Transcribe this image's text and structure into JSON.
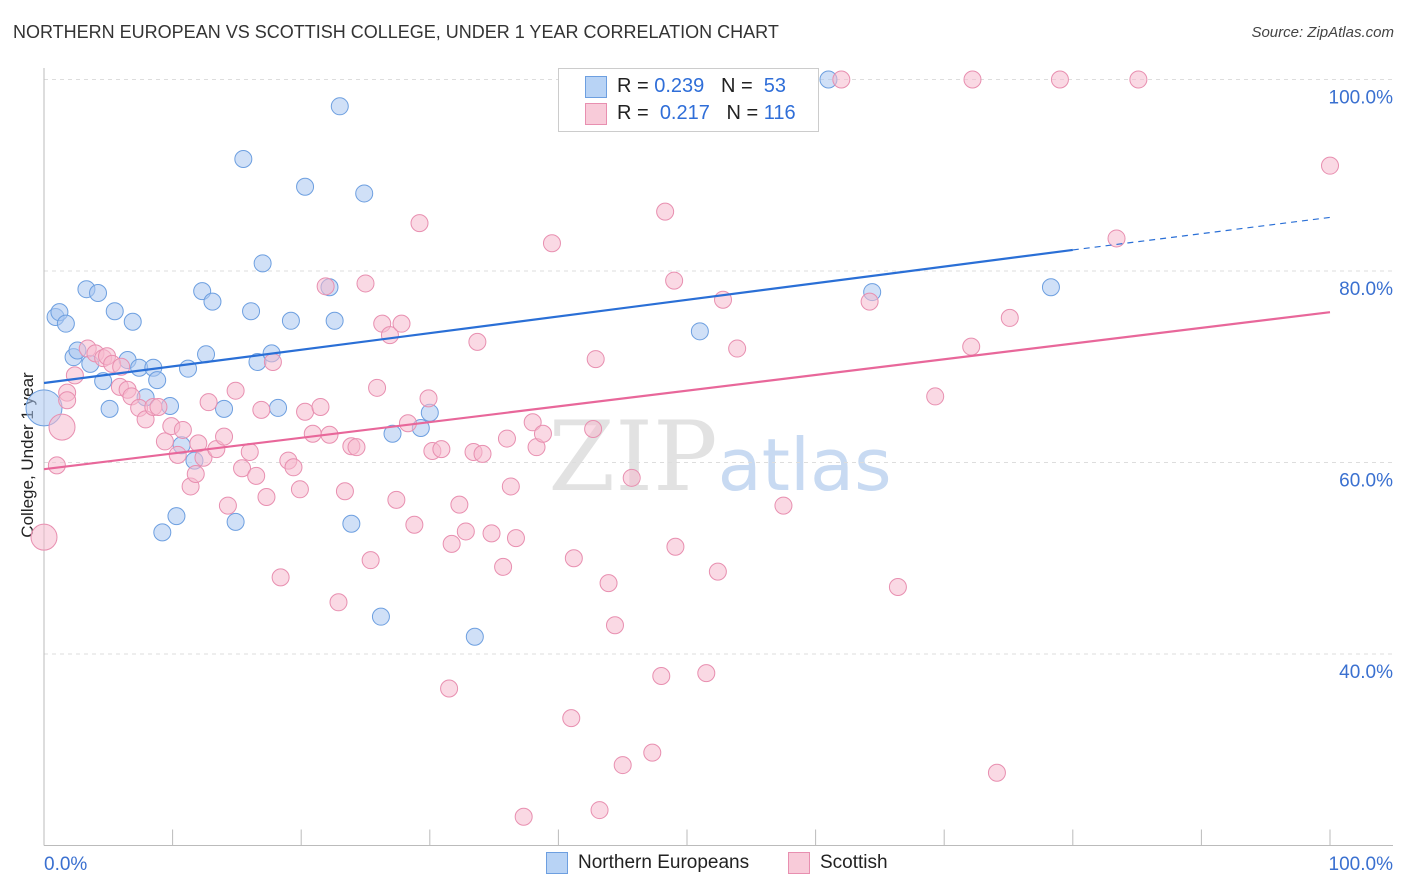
{
  "title": "NORTHERN EUROPEAN VS SCOTTISH COLLEGE, UNDER 1 YEAR CORRELATION CHART",
  "source": "Source: ZipAtlas.com",
  "watermark": "ZIPatlas",
  "chart_data": {
    "type": "scatter",
    "xlabel": "",
    "ylabel": "College, Under 1 year",
    "xlim": [
      0,
      100
    ],
    "ylim": [
      20,
      100
    ],
    "x_tick_labels": [
      "0.0%",
      "100.0%"
    ],
    "y_ticks": [
      40,
      60,
      80,
      100
    ],
    "y_tick_labels": [
      "40.0%",
      "60.0%",
      "80.0%",
      "100.0%"
    ],
    "grid": true,
    "legend": {
      "placement": "top-center",
      "entries": [
        {
          "r_label": "R =",
          "r": "0.239",
          "n_label": "N =",
          "n": "53"
        },
        {
          "r_label": "R =",
          "r": "0.217",
          "n_label": "N =",
          "n": "116"
        }
      ]
    },
    "series": [
      {
        "name": "Northern Europeans",
        "color": "#a9c7f0",
        "stroke": "#6d9fe0",
        "line_color": "#2a6fd6",
        "trend": {
          "x": [
            0,
            80,
            100
          ],
          "y": [
            68.3,
            82.2,
            85.6
          ],
          "dashed_after": 80
        },
        "points": [
          [
            0,
            65.7
          ],
          [
            0.9,
            75.2
          ],
          [
            1.2,
            75.7
          ],
          [
            1.7,
            74.5
          ],
          [
            2.3,
            71.0
          ],
          [
            2.6,
            71.7
          ],
          [
            3.3,
            78.1
          ],
          [
            3.6,
            70.3
          ],
          [
            4.2,
            77.7
          ],
          [
            4.6,
            68.5
          ],
          [
            5.1,
            65.6
          ],
          [
            5.5,
            75.8
          ],
          [
            6.5,
            70.7
          ],
          [
            6.9,
            74.7
          ],
          [
            7.4,
            69.9
          ],
          [
            7.9,
            66.8
          ],
          [
            8.5,
            69.9
          ],
          [
            8.8,
            68.6
          ],
          [
            9.2,
            52.7
          ],
          [
            9.8,
            65.9
          ],
          [
            10.3,
            54.4
          ],
          [
            10.7,
            61.8
          ],
          [
            11.2,
            69.8
          ],
          [
            11.7,
            60.2
          ],
          [
            12.3,
            77.9
          ],
          [
            12.6,
            71.3
          ],
          [
            13.1,
            76.8
          ],
          [
            14.0,
            65.6
          ],
          [
            14.9,
            53.8
          ],
          [
            15.5,
            91.7
          ],
          [
            16.1,
            75.8
          ],
          [
            16.6,
            70.5
          ],
          [
            17.0,
            80.8
          ],
          [
            17.7,
            71.4
          ],
          [
            18.2,
            65.7
          ],
          [
            19.2,
            74.8
          ],
          [
            20.3,
            88.8
          ],
          [
            22.2,
            78.3
          ],
          [
            22.6,
            74.8
          ],
          [
            23.0,
            97.2
          ],
          [
            23.9,
            53.6
          ],
          [
            24.9,
            88.1
          ],
          [
            26.2,
            43.9
          ],
          [
            27.1,
            63.0
          ],
          [
            29.3,
            63.6
          ],
          [
            30.0,
            65.2
          ],
          [
            33.5,
            41.8
          ],
          [
            41.0,
            100
          ],
          [
            51.0,
            73.7
          ],
          [
            61.0,
            100
          ],
          [
            64.4,
            77.8
          ],
          [
            78.3,
            78.3
          ]
        ],
        "big_points": [
          0
        ]
      },
      {
        "name": "Scottish",
        "color": "#f5b9cd",
        "stroke": "#e88fb0",
        "line_color": "#e8679a",
        "trend": {
          "x": [
            0,
            100
          ],
          "y": [
            59.3,
            75.7
          ]
        },
        "points": [
          [
            0,
            52.2
          ],
          [
            1.0,
            59.7
          ],
          [
            1.4,
            63.7
          ],
          [
            1.8,
            67.3
          ],
          [
            2.4,
            69.1
          ],
          [
            3.4,
            71.9
          ],
          [
            4.0,
            71.4
          ],
          [
            4.6,
            70.9
          ],
          [
            4.9,
            71.1
          ],
          [
            5.3,
            70.3
          ],
          [
            5.9,
            67.9
          ],
          [
            6.5,
            67.6
          ],
          [
            6.8,
            66.9
          ],
          [
            7.4,
            65.7
          ],
          [
            7.9,
            64.5
          ],
          [
            8.5,
            65.8
          ],
          [
            8.9,
            65.8
          ],
          [
            9.4,
            62.2
          ],
          [
            9.9,
            63.8
          ],
          [
            10.4,
            60.8
          ],
          [
            10.8,
            63.4
          ],
          [
            11.4,
            57.5
          ],
          [
            11.8,
            58.8
          ],
          [
            12.4,
            60.5
          ],
          [
            12.8,
            66.3
          ],
          [
            13.4,
            61.4
          ],
          [
            14.0,
            62.7
          ],
          [
            14.3,
            55.5
          ],
          [
            14.9,
            67.5
          ],
          [
            15.4,
            59.4
          ],
          [
            16.0,
            61.1
          ],
          [
            16.5,
            58.6
          ],
          [
            16.9,
            65.5
          ],
          [
            17.3,
            56.4
          ],
          [
            17.8,
            70.5
          ],
          [
            18.4,
            48.0
          ],
          [
            19.0,
            60.2
          ],
          [
            19.4,
            59.5
          ],
          [
            19.9,
            57.2
          ],
          [
            20.3,
            65.3
          ],
          [
            20.9,
            63.0
          ],
          [
            21.5,
            65.8
          ],
          [
            21.9,
            78.4
          ],
          [
            22.2,
            62.9
          ],
          [
            22.9,
            45.4
          ],
          [
            23.4,
            57.0
          ],
          [
            23.9,
            61.7
          ],
          [
            24.3,
            61.6
          ],
          [
            25.0,
            78.7
          ],
          [
            25.4,
            49.8
          ],
          [
            25.9,
            67.8
          ],
          [
            26.3,
            74.5
          ],
          [
            26.9,
            73.3
          ],
          [
            27.4,
            56.1
          ],
          [
            27.8,
            74.5
          ],
          [
            28.3,
            64.1
          ],
          [
            28.8,
            53.5
          ],
          [
            29.2,
            85.0
          ],
          [
            29.9,
            66.7
          ],
          [
            30.2,
            61.2
          ],
          [
            30.9,
            61.4
          ],
          [
            31.5,
            36.4
          ],
          [
            31.7,
            51.5
          ],
          [
            32.3,
            55.6
          ],
          [
            32.8,
            52.8
          ],
          [
            33.4,
            61.1
          ],
          [
            33.7,
            72.6
          ],
          [
            34.1,
            60.9
          ],
          [
            34.8,
            52.6
          ],
          [
            35.7,
            49.1
          ],
          [
            36.0,
            62.5
          ],
          [
            36.3,
            57.5
          ],
          [
            36.7,
            52.1
          ],
          [
            38.0,
            64.2
          ],
          [
            38.3,
            61.6
          ],
          [
            38.8,
            63.0
          ],
          [
            39.5,
            82.9
          ],
          [
            41.0,
            33.3
          ],
          [
            41.2,
            50.0
          ],
          [
            41.3,
            100
          ],
          [
            42.7,
            63.5
          ],
          [
            42.9,
            70.8
          ],
          [
            43.2,
            23.7
          ],
          [
            43.9,
            47.4
          ],
          [
            44.4,
            43.0
          ],
          [
            45.0,
            28.4
          ],
          [
            45.7,
            58.4
          ],
          [
            47.3,
            29.7
          ],
          [
            48.0,
            37.7
          ],
          [
            48.3,
            86.2
          ],
          [
            49.0,
            79.0
          ],
          [
            49.1,
            51.2
          ],
          [
            51.5,
            38.0
          ],
          [
            52.0,
            100
          ],
          [
            52.4,
            48.6
          ],
          [
            52.8,
            77.0
          ],
          [
            53.9,
            71.9
          ],
          [
            57.5,
            55.5
          ],
          [
            59.1,
            100
          ],
          [
            62.0,
            100
          ],
          [
            64.2,
            76.8
          ],
          [
            66.4,
            47.0
          ],
          [
            69.3,
            66.9
          ],
          [
            72.1,
            72.1
          ],
          [
            72.2,
            100
          ],
          [
            74.1,
            27.6
          ],
          [
            75.1,
            75.1
          ],
          [
            79.0,
            100
          ],
          [
            83.4,
            83.4
          ],
          [
            85.1,
            100
          ],
          [
            100,
            91.0
          ],
          [
            37.3,
            23.0
          ],
          [
            1.8,
            66.5
          ],
          [
            6.0,
            70.0
          ],
          [
            12.0,
            62.0
          ]
        ],
        "big_points": [
          0,
          2
        ]
      }
    ]
  }
}
